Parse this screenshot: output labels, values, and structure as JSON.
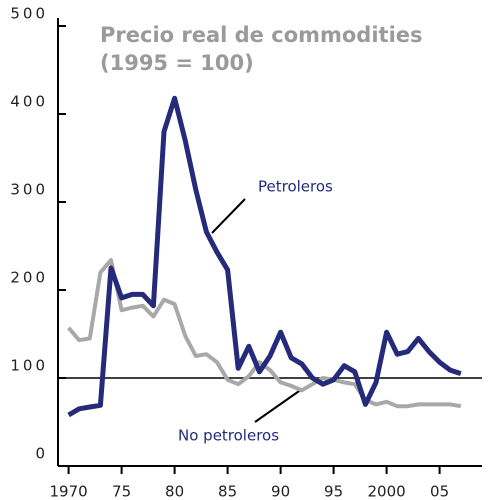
{
  "chart_data": {
    "type": "line",
    "title": [
      "Precio real de commodities",
      "(1995 = 100)"
    ],
    "x": [
      1970,
      1971,
      1972,
      1973,
      1974,
      1975,
      1976,
      1977,
      1978,
      1979,
      1980,
      1981,
      1982,
      1983,
      1984,
      1985,
      1986,
      1987,
      1988,
      1989,
      1990,
      1991,
      1992,
      1993,
      1994,
      1995,
      1996,
      1997,
      1998,
      1999,
      2000,
      2001,
      2002,
      2003,
      2004,
      2005,
      2006,
      2007
    ],
    "series": [
      {
        "name": "Petroleros",
        "color": "#262a7a",
        "values": [
          58,
          65,
          67,
          69,
          225,
          191,
          195,
          195,
          182,
          380,
          418,
          370,
          314,
          266,
          243,
          223,
          111,
          136,
          107,
          125,
          152,
          123,
          116,
          100,
          93,
          98,
          114,
          107,
          70,
          95,
          152,
          127,
          130,
          145,
          130,
          118,
          109,
          105
        ]
      },
      {
        "name": "No petroleros",
        "color": "#a8a8a8",
        "values": [
          157,
          143,
          145,
          220,
          234,
          177,
          180,
          182,
          170,
          189,
          184,
          148,
          125,
          127,
          118,
          98,
          93,
          102,
          118,
          109,
          95,
          91,
          86,
          93,
          100,
          98,
          95,
          93,
          75,
          70,
          73,
          68,
          68,
          70,
          70,
          70,
          70,
          68
        ]
      }
    ],
    "reference_line": 100,
    "xlim": [
      1969,
      2009
    ],
    "xticks": [
      1970,
      {
        "value": 1975,
        "label": "75"
      },
      {
        "value": 1980,
        "label": "80"
      },
      {
        "value": 1985,
        "label": "85"
      },
      {
        "value": 1990,
        "label": "90"
      },
      {
        "value": 1995,
        "label": "95"
      },
      2000,
      {
        "value": 2005,
        "label": "05"
      }
    ],
    "ylim": [
      0,
      500
    ],
    "yticks": [
      0,
      100,
      200,
      300,
      400,
      500
    ]
  }
}
